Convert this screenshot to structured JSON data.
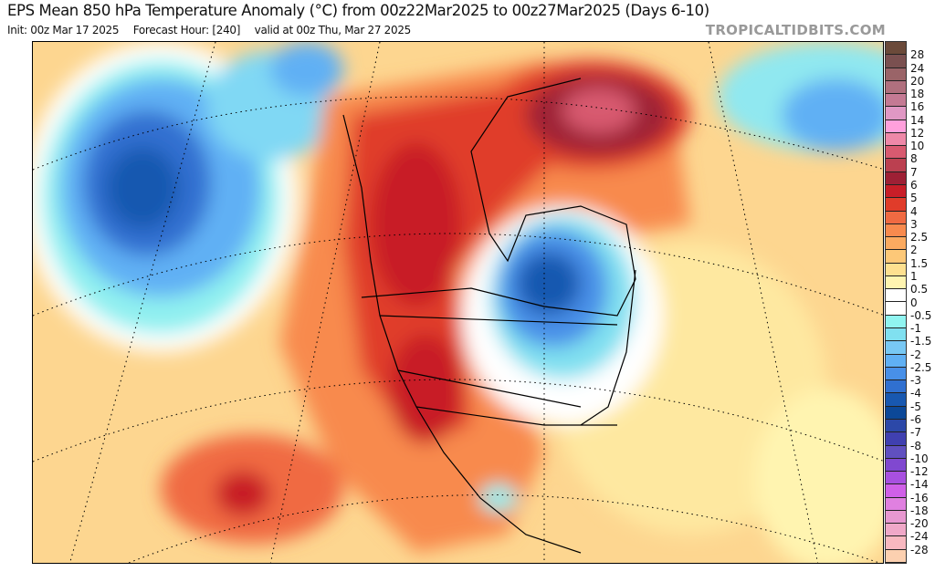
{
  "header": {
    "title": "EPS Mean 850 hPa Temperature Anomaly (°C) from 00z22Mar2025 to 00z27Mar2025 (Days 6-10)",
    "init": "Init: 00z Mar 17 2025",
    "forecast_hour": "Forecast Hour: [240]",
    "valid": "valid at 00z Thu, Mar 27 2025",
    "brand": "TROPICALTIDBITS.COM"
  },
  "colorbar": {
    "labels": [
      "28",
      "24",
      "20",
      "18",
      "16",
      "14",
      "12",
      "10",
      "8",
      "7",
      "6",
      "5",
      "4",
      "3",
      "2.5",
      "2",
      "1.5",
      "1",
      "0.5",
      "0",
      "-0.5",
      "-1",
      "-1.5",
      "-2",
      "-2.5",
      "-3",
      "-4",
      "-5",
      "-6",
      "-7",
      "-8",
      "-10",
      "-12",
      "-14",
      "-16",
      "-18",
      "-20",
      "-24",
      "-28"
    ],
    "colors": [
      "#6b4a3a",
      "#7a5050",
      "#9a6468",
      "#b0707e",
      "#c47a94",
      "#e098c4",
      "#ffa0dc",
      "#ee88a8",
      "#d85a70",
      "#bb4050",
      "#9e2035",
      "#c81e28",
      "#e03c2a",
      "#f06a42",
      "#f88a4e",
      "#fbaa60",
      "#fdc878",
      "#fee090",
      "#fff4b0",
      "#ffffff",
      "#ffffff",
      "#90f4f0",
      "#80e0f0",
      "#78c8f4",
      "#60b0f4",
      "#4890e8",
      "#3070d0",
      "#1858b0",
      "#0c4898",
      "#2c48a8",
      "#4040b0",
      "#6050c0",
      "#8048d0",
      "#a850e0",
      "#d060e8",
      "#e080e0",
      "#e898d0",
      "#f0a8c8",
      "#f8b8c0",
      "#fcd0b0"
    ]
  },
  "map": {
    "region": "North America",
    "features": [
      "warm anomaly western North America",
      "warm anomaly Greenland",
      "cold anomaly Hudson Bay / Great Lakes",
      "cold anomaly North Pacific"
    ]
  }
}
